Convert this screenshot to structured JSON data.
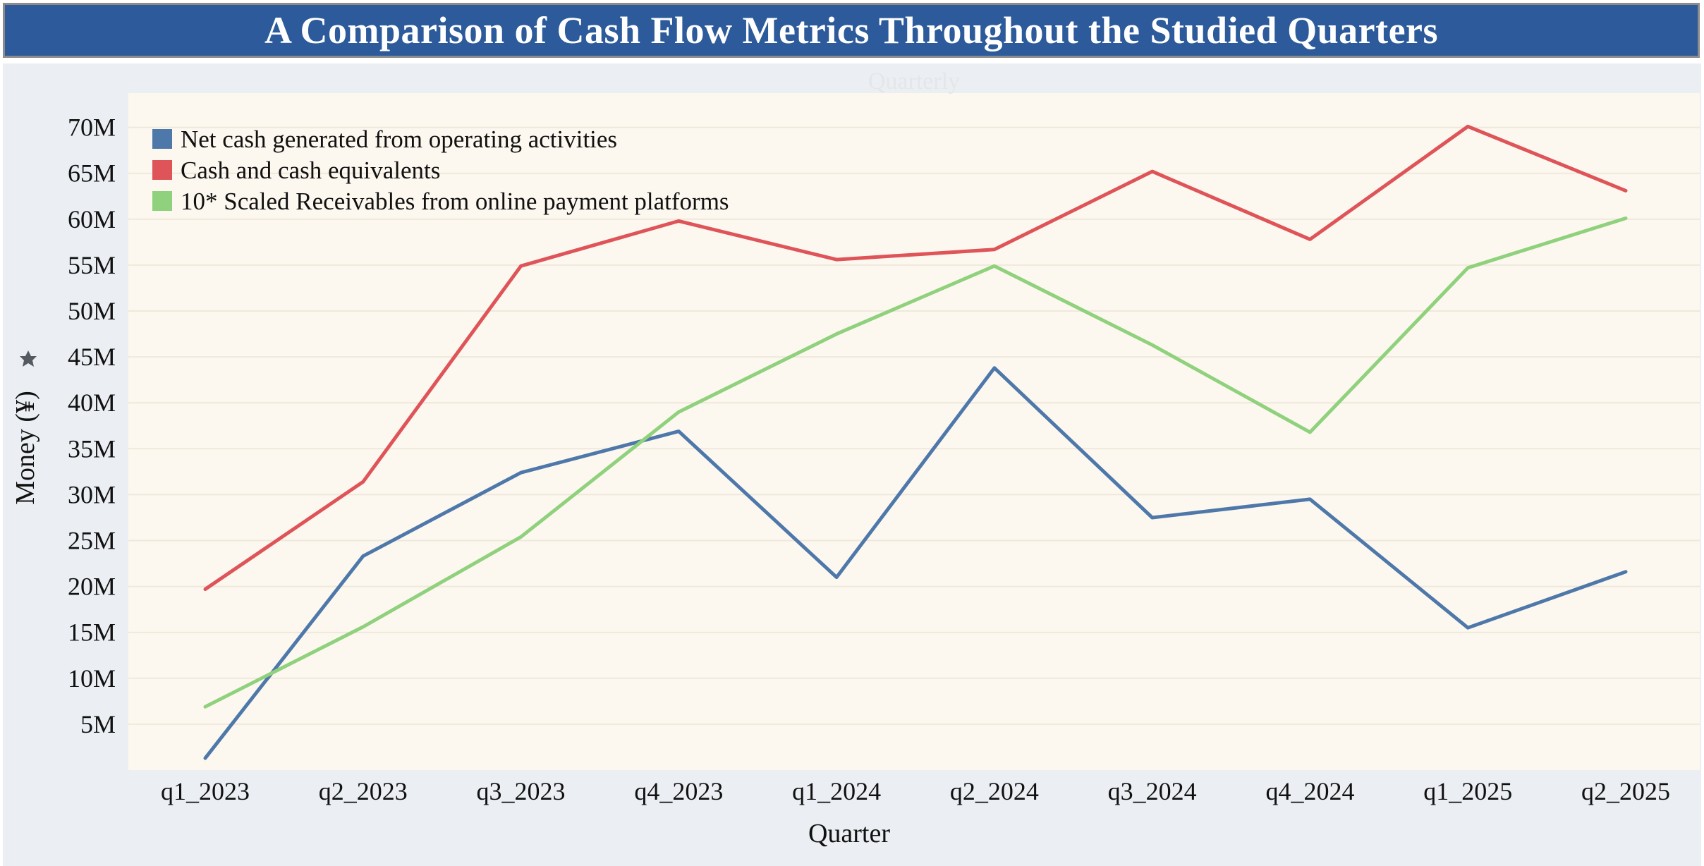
{
  "title": "A Comparison of Cash Flow Metrics Throughout the Studied Quarters",
  "section_label": "Quarterly",
  "y_axis_icon": "pin-icon",
  "colors": {
    "title_bg": "#2c5a9a",
    "plot_bg": "#fdf8ef",
    "frame_bg": "#ebeff3",
    "grid": "#efe8dc"
  },
  "chart_data": {
    "type": "line",
    "title": "A Comparison of Cash Flow Metrics Throughout the Studied Quarters",
    "xlabel": "Quarter",
    "ylabel": "Money (¥)",
    "ylim": [
      0,
      73000000
    ],
    "yticks": [
      5000000,
      10000000,
      15000000,
      20000000,
      25000000,
      30000000,
      35000000,
      40000000,
      45000000,
      50000000,
      55000000,
      60000000,
      65000000,
      70000000
    ],
    "ytick_labels": [
      "5M",
      "10M",
      "15M",
      "20M",
      "25M",
      "30M",
      "35M",
      "40M",
      "45M",
      "50M",
      "55M",
      "60M",
      "65M",
      "70M"
    ],
    "grid": true,
    "legend_position": "top-left",
    "categories": [
      "q1_2023",
      "q2_2023",
      "q3_2023",
      "q4_2023",
      "q1_2024",
      "q2_2024",
      "q3_2024",
      "q4_2024",
      "q1_2025",
      "q2_2025"
    ],
    "series": [
      {
        "name": "Net cash generated from operating activities",
        "color": "#4e78aa",
        "values": [
          1300000,
          23300000,
          32400000,
          36900000,
          21000000,
          43800000,
          27500000,
          29500000,
          15500000,
          21600000
        ]
      },
      {
        "name": "Cash and cash equivalents",
        "color": "#de5458",
        "values": [
          19700000,
          31400000,
          54900000,
          59800000,
          55600000,
          56700000,
          65200000,
          57800000,
          70100000,
          63100000
        ]
      },
      {
        "name": "10* Scaled Receivables from online payment platforms",
        "color": "#8fd17c",
        "values": [
          6900000,
          15600000,
          25400000,
          39000000,
          47500000,
          54900000,
          46300000,
          36800000,
          54700000,
          60100000
        ]
      }
    ]
  }
}
